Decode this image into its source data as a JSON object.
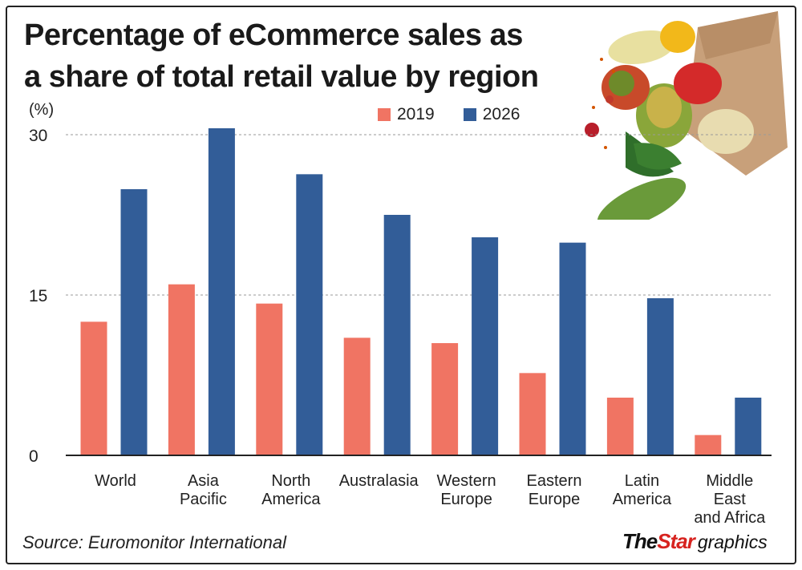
{
  "title_lines": [
    "Percentage of eCommerce sales as",
    "a share of total retail value by region"
  ],
  "unit_label": "(%)",
  "source": "Source: Euromonitor International",
  "brand": {
    "the": "The",
    "star": "Star",
    "graphics": "graphics"
  },
  "chart_data": {
    "type": "bar",
    "categories": [
      [
        "World"
      ],
      [
        "Asia",
        "Pacific"
      ],
      [
        "North",
        "America"
      ],
      [
        "Australasia"
      ],
      [
        "Western",
        "Europe"
      ],
      [
        "Eastern",
        "Europe"
      ],
      [
        "Latin",
        "America"
      ],
      [
        "Middle",
        "East",
        "and Africa"
      ]
    ],
    "series": [
      {
        "name": "2019",
        "color": "#f07463",
        "values": [
          12.5,
          16.0,
          14.2,
          11.0,
          10.5,
          7.7,
          5.4,
          1.9
        ]
      },
      {
        "name": "2026",
        "color": "#325d98",
        "values": [
          24.9,
          30.6,
          26.3,
          22.5,
          20.4,
          19.9,
          14.7,
          5.4
        ]
      }
    ],
    "yticks": [
      0,
      15,
      30
    ],
    "ylim": [
      0,
      30
    ],
    "grid": true,
    "legend_position": "top"
  }
}
